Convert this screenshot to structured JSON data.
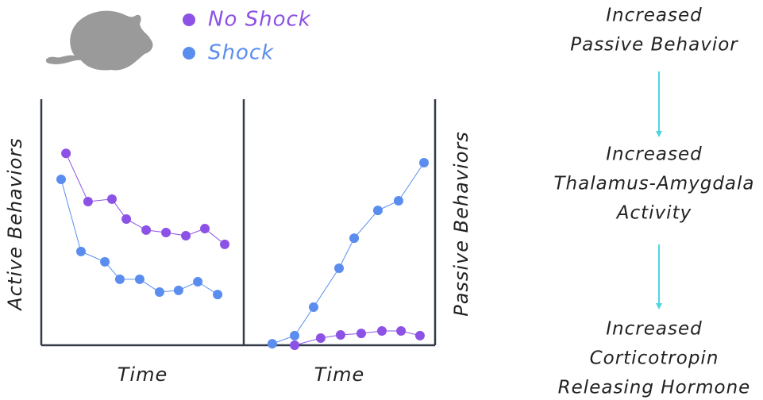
{
  "chart_data": [
    {
      "type": "line",
      "y_label": "Active Behaviors",
      "x_label": "Time",
      "xlim": [
        0,
        100
      ],
      "ylim": [
        0,
        100
      ],
      "legend": "top",
      "series": [
        {
          "name": "No Shock",
          "color": "#8c52e6",
          "x": [
            12.2,
            23.1,
            34.9,
            42,
            51.8,
            61.6,
            71.4,
            80.8,
            90.6
          ],
          "values": [
            78,
            58.4,
            59.4,
            51.3,
            46.8,
            45.8,
            44.5,
            47.4,
            41
          ]
        },
        {
          "name": "Shock",
          "color": "#5b8def",
          "x": [
            9.8,
            19.6,
            31.4,
            38.8,
            48.6,
            58.4,
            67.8,
            77.3,
            87.1
          ],
          "values": [
            67.4,
            38.1,
            33.9,
            26.8,
            26.8,
            21.6,
            22.3,
            25.8,
            20.6
          ]
        }
      ]
    },
    {
      "type": "line",
      "y_label": "Passive Behaviors",
      "x_label": "Time",
      "y_label_side": "right",
      "xlim": [
        0,
        100
      ],
      "ylim": [
        0,
        100
      ],
      "series": [
        {
          "name": "No Shock",
          "color": "#8c52e6",
          "x": [
            26.6,
            40.2,
            50.6,
            61.4,
            72.2,
            82.2,
            92.1
          ],
          "values": [
            0,
            2.9,
            4.2,
            4.8,
            5.8,
            5.8,
            3.9
          ]
        },
        {
          "name": "Shock",
          "color": "#5b8def",
          "x": [
            14.9,
            26.6,
            36.5,
            49.8,
            57.7,
            70.1,
            80.9,
            94.2
          ],
          "values": [
            0.6,
            3.9,
            15.5,
            31.3,
            43.5,
            54.8,
            58.7,
            74.2
          ]
        }
      ]
    }
  ],
  "flow": {
    "steps": [
      [
        "Increased",
        "Passive Behavior"
      ],
      [
        "Increased",
        "Thalamus-Amygdala",
        "Activity"
      ],
      [
        "Increased",
        "Corticotropin",
        "Releasing Hormone"
      ]
    ]
  }
}
